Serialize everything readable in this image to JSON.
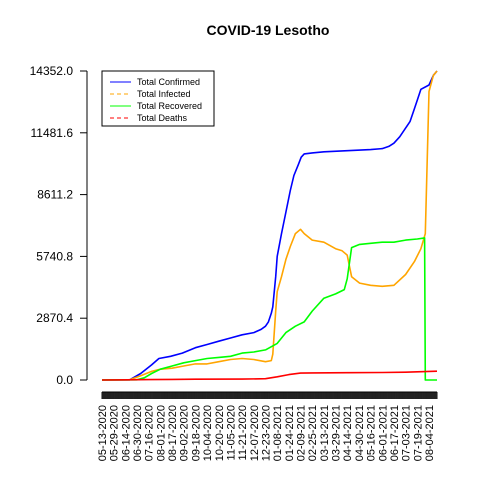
{
  "chart_data": {
    "type": "line",
    "title": "COVID-19 Lesotho",
    "xlabel": "",
    "ylabel": "",
    "y_ticks": [
      "0.0",
      "2870.4",
      "5740.8",
      "8611.2",
      "11481.6",
      "14352.0"
    ],
    "ylim": [
      0,
      14352
    ],
    "x_ticks": [
      "05-13-2020",
      "05-29-2020",
      "06-14-2020",
      "06-30-2020",
      "07-16-2020",
      "08-01-2020",
      "08-17-2020",
      "09-02-2020",
      "09-18-2020",
      "10-04-2020",
      "10-20-2020",
      "11-05-2020",
      "11-21-2020",
      "12-07-2020",
      "12-23-2020",
      "01-08-2021",
      "01-24-2021",
      "02-09-2021",
      "02-25-2021",
      "03-13-2021",
      "03-29-2021",
      "04-14-2021",
      "04-30-2021",
      "05-16-2021",
      "06-01-2021",
      "06-17-2021",
      "07-03-2021",
      "07-19-2021",
      "08-04-2021"
    ],
    "x_range": [
      "05-13-2020",
      "08-15-2021"
    ],
    "legend_position": "top-left",
    "series": [
      {
        "name": "Total Confirmed",
        "color": "#0000ff",
        "dash": "solid",
        "points": [
          [
            "05-13-2020",
            0
          ],
          [
            "06-20-2020",
            10
          ],
          [
            "07-05-2020",
            300
          ],
          [
            "07-20-2020",
            700
          ],
          [
            "07-30-2020",
            1000
          ],
          [
            "08-15-2020",
            1100
          ],
          [
            "08-31-2020",
            1250
          ],
          [
            "09-18-2020",
            1500
          ],
          [
            "10-04-2020",
            1650
          ],
          [
            "10-20-2020",
            1800
          ],
          [
            "11-05-2020",
            1950
          ],
          [
            "11-21-2020",
            2100
          ],
          [
            "12-07-2020",
            2200
          ],
          [
            "12-17-2020",
            2350
          ],
          [
            "12-23-2020",
            2500
          ],
          [
            "12-27-2020",
            2700
          ],
          [
            "12-31-2020",
            3100
          ],
          [
            "01-02-2021",
            3400
          ],
          [
            "01-06-2021",
            4800
          ],
          [
            "01-08-2021",
            5740
          ],
          [
            "01-14-2021",
            6800
          ],
          [
            "01-20-2021",
            7800
          ],
          [
            "01-26-2021",
            8800
          ],
          [
            "01-31-2021",
            9500
          ],
          [
            "02-06-2021",
            10000
          ],
          [
            "02-10-2021",
            10350
          ],
          [
            "02-14-2021",
            10500
          ],
          [
            "02-25-2021",
            10550
          ],
          [
            "03-13-2021",
            10600
          ],
          [
            "04-14-2021",
            10650
          ],
          [
            "05-16-2021",
            10700
          ],
          [
            "06-01-2021",
            10750
          ],
          [
            "06-10-2021",
            10850
          ],
          [
            "06-17-2021",
            11000
          ],
          [
            "06-25-2021",
            11300
          ],
          [
            "07-03-2021",
            11700
          ],
          [
            "07-09-2021",
            12000
          ],
          [
            "07-15-2021",
            12600
          ],
          [
            "07-19-2021",
            13000
          ],
          [
            "07-24-2021",
            13500
          ],
          [
            "08-04-2021",
            13700
          ],
          [
            "08-10-2021",
            14150
          ],
          [
            "08-15-2021",
            14352
          ]
        ]
      },
      {
        "name": "Total Infected",
        "color": "#ffa500",
        "dash": "dashed",
        "points": [
          [
            "05-13-2020",
            0
          ],
          [
            "06-20-2020",
            10
          ],
          [
            "07-05-2020",
            200
          ],
          [
            "07-20-2020",
            400
          ],
          [
            "08-01-2020",
            500
          ],
          [
            "08-17-2020",
            550
          ],
          [
            "09-02-2020",
            650
          ],
          [
            "09-18-2020",
            750
          ],
          [
            "10-04-2020",
            750
          ],
          [
            "10-20-2020",
            850
          ],
          [
            "11-05-2020",
            950
          ],
          [
            "11-21-2020",
            1000
          ],
          [
            "12-07-2020",
            950
          ],
          [
            "12-23-2020",
            850
          ],
          [
            "12-31-2020",
            900
          ],
          [
            "01-02-2021",
            1200
          ],
          [
            "01-06-2021",
            3200
          ],
          [
            "01-08-2021",
            4100
          ],
          [
            "01-14-2021",
            4800
          ],
          [
            "01-20-2021",
            5600
          ],
          [
            "01-26-2021",
            6200
          ],
          [
            "02-02-2021",
            6800
          ],
          [
            "02-09-2021",
            7000
          ],
          [
            "02-14-2021",
            6800
          ],
          [
            "02-25-2021",
            6500
          ],
          [
            "03-13-2021",
            6400
          ],
          [
            "03-29-2021",
            6100
          ],
          [
            "04-07-2021",
            6000
          ],
          [
            "04-14-2021",
            5800
          ],
          [
            "04-20-2021",
            4800
          ],
          [
            "05-01-2021",
            4500
          ],
          [
            "05-16-2021",
            4400
          ],
          [
            "06-01-2021",
            4350
          ],
          [
            "06-17-2021",
            4400
          ],
          [
            "07-03-2021",
            4900
          ],
          [
            "07-15-2021",
            5500
          ],
          [
            "07-24-2021",
            6100
          ],
          [
            "07-30-2021",
            6800
          ],
          [
            "08-04-2021",
            13400
          ],
          [
            "08-10-2021",
            14150
          ],
          [
            "08-15-2021",
            14352
          ]
        ]
      },
      {
        "name": "Total Recovered",
        "color": "#00ff00",
        "dash": "solid",
        "points": [
          [
            "05-13-2020",
            0
          ],
          [
            "06-30-2020",
            10
          ],
          [
            "07-10-2020",
            100
          ],
          [
            "07-20-2020",
            300
          ],
          [
            "08-01-2020",
            500
          ],
          [
            "08-17-2020",
            650
          ],
          [
            "09-02-2020",
            800
          ],
          [
            "09-18-2020",
            900
          ],
          [
            "10-04-2020",
            1000
          ],
          [
            "10-20-2020",
            1050
          ],
          [
            "11-05-2020",
            1100
          ],
          [
            "11-21-2020",
            1250
          ],
          [
            "12-07-2020",
            1300
          ],
          [
            "12-23-2020",
            1400
          ],
          [
            "01-08-2021",
            1700
          ],
          [
            "01-20-2021",
            2200
          ],
          [
            "02-02-2021",
            2500
          ],
          [
            "02-14-2021",
            2700
          ],
          [
            "02-25-2021",
            3200
          ],
          [
            "03-13-2021",
            3800
          ],
          [
            "03-29-2021",
            4000
          ],
          [
            "04-10-2021",
            4200
          ],
          [
            "04-14-2021",
            4700
          ],
          [
            "04-20-2021",
            6150
          ],
          [
            "05-01-2021",
            6300
          ],
          [
            "05-16-2021",
            6350
          ],
          [
            "06-01-2021",
            6400
          ],
          [
            "06-17-2021",
            6400
          ],
          [
            "07-03-2021",
            6500
          ],
          [
            "07-19-2021",
            6550
          ],
          [
            "07-29-2021",
            6600
          ],
          [
            "07-30-2021",
            0
          ],
          [
            "08-15-2021",
            0
          ]
        ]
      },
      {
        "name": "Total Deaths",
        "color": "#ff0000",
        "dash": "dashed",
        "points": [
          [
            "05-13-2020",
            0
          ],
          [
            "07-16-2020",
            20
          ],
          [
            "08-17-2020",
            30
          ],
          [
            "09-18-2020",
            35
          ],
          [
            "11-21-2020",
            40
          ],
          [
            "12-23-2020",
            60
          ],
          [
            "01-08-2021",
            150
          ],
          [
            "01-24-2021",
            250
          ],
          [
            "02-09-2021",
            320
          ],
          [
            "02-25-2021",
            330
          ],
          [
            "04-14-2021",
            340
          ],
          [
            "06-01-2021",
            350
          ],
          [
            "07-03-2021",
            360
          ],
          [
            "07-19-2021",
            380
          ],
          [
            "08-04-2021",
            400
          ],
          [
            "08-15-2021",
            410
          ]
        ]
      }
    ]
  }
}
